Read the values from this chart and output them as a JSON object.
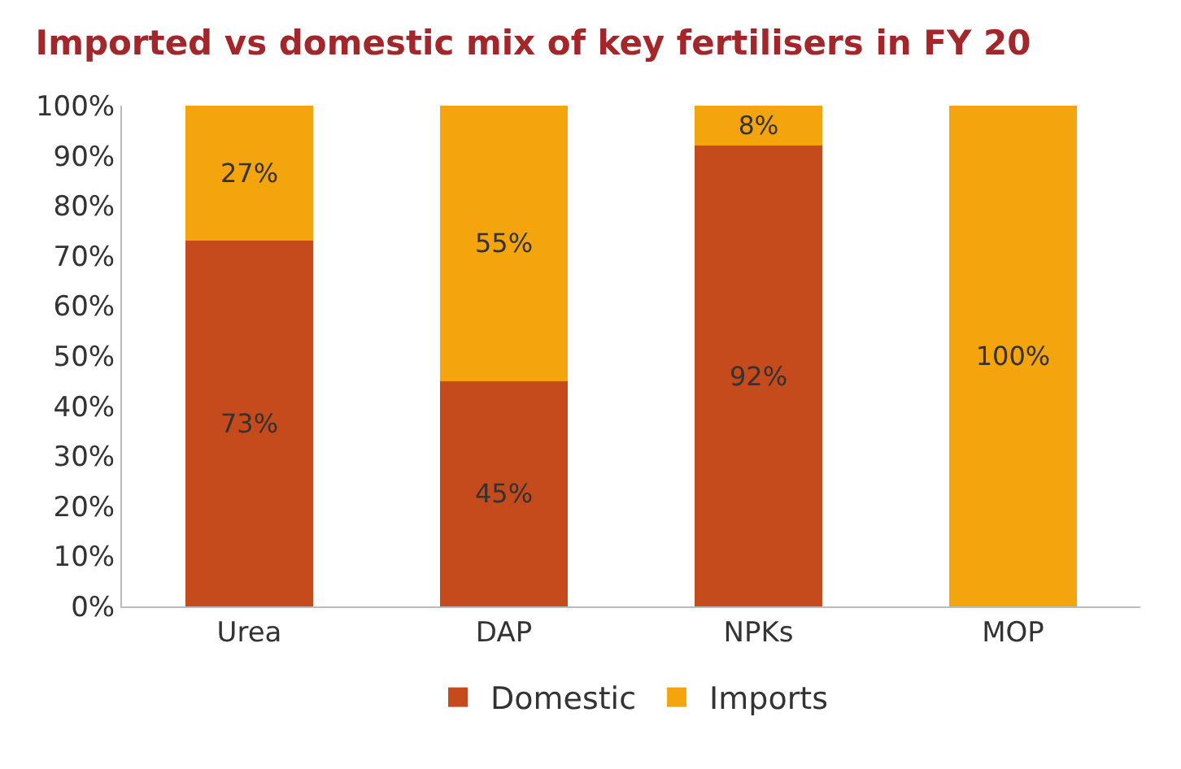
{
  "chart_data": {
    "type": "bar",
    "stacked": true,
    "title": "Imported vs domestic mix of key fertilisers in FY 20",
    "categories": [
      "Urea",
      "DAP",
      "NPKs",
      "MOP"
    ],
    "series": [
      {
        "name": "Domestic",
        "color": "#c54a1c",
        "values": [
          73,
          45,
          92,
          0
        ],
        "value_labels": [
          "73%",
          "45%",
          "92%",
          null
        ]
      },
      {
        "name": "Imports",
        "color": "#f4a40c",
        "values": [
          27,
          55,
          8,
          100
        ],
        "value_labels": [
          "27%",
          "55%",
          "8%",
          "100%"
        ]
      }
    ],
    "ylim": [
      0,
      100
    ],
    "yticks": [
      {
        "value": 0,
        "label": "0%"
      },
      {
        "value": 10,
        "label": "10%"
      },
      {
        "value": 20,
        "label": "20%"
      },
      {
        "value": 30,
        "label": "30%"
      },
      {
        "value": 40,
        "label": "40%"
      },
      {
        "value": 50,
        "label": "50%"
      },
      {
        "value": 60,
        "label": "60%"
      },
      {
        "value": 70,
        "label": "70%"
      },
      {
        "value": 80,
        "label": "80%"
      },
      {
        "value": 90,
        "label": "90%"
      },
      {
        "value": 100,
        "label": "100%"
      }
    ],
    "legend": "bottom"
  }
}
